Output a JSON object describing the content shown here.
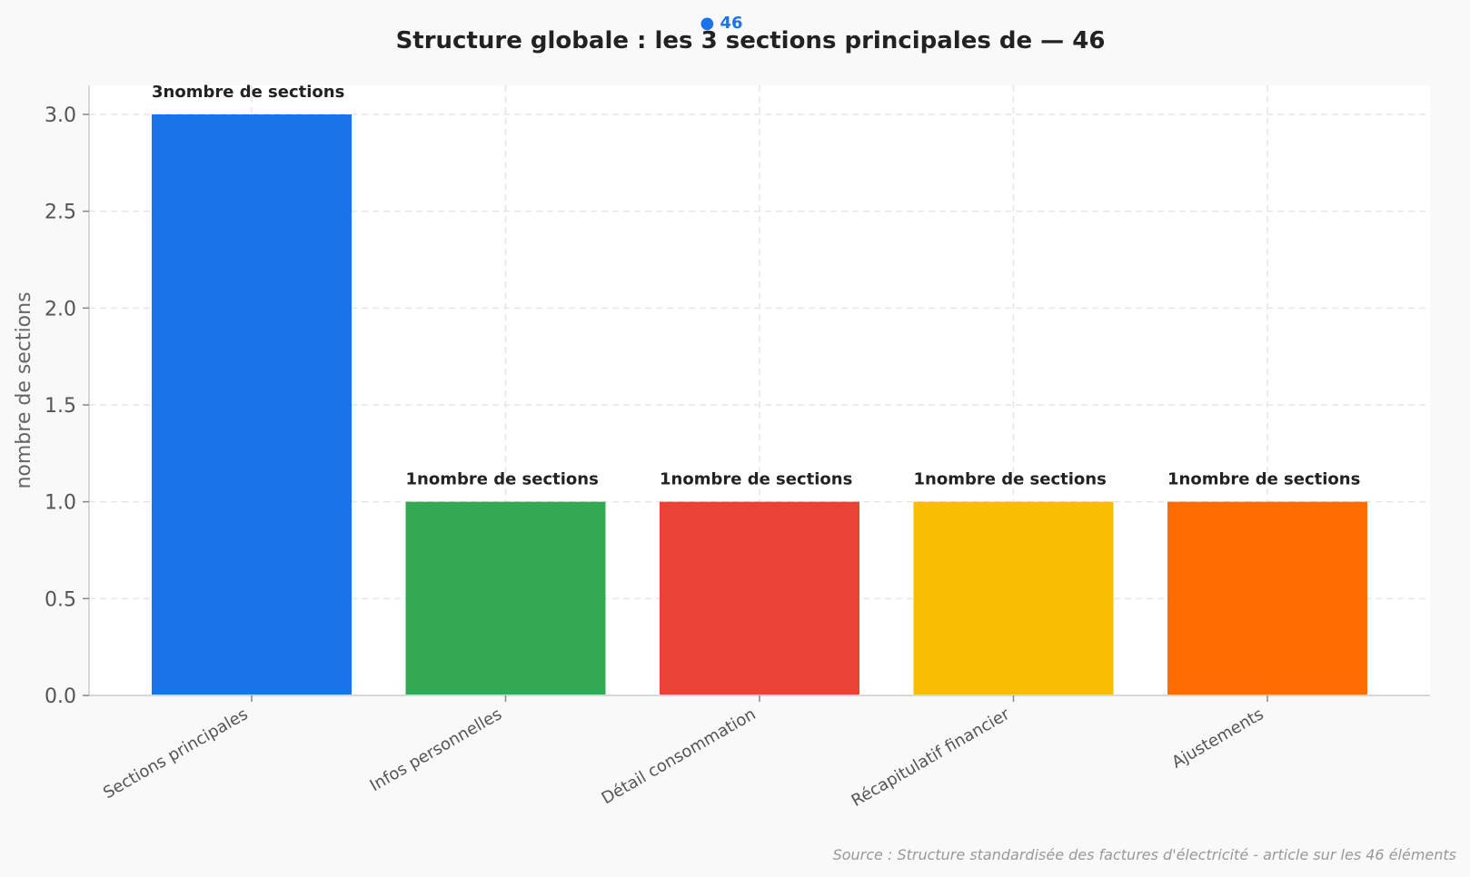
{
  "chart_data": {
    "type": "bar",
    "title": "Structure globale : les 3 sections principales de  — 46",
    "badge": "● 46",
    "ylabel": "nombre de sections",
    "xlabel": "",
    "categories": [
      "Sections principales",
      "Infos personnelles",
      "Détail consommation",
      "Récapitulatif financier",
      "Ajustements"
    ],
    "values": [
      3,
      1,
      1,
      1,
      1
    ],
    "data_labels": [
      "3nombre de sections",
      "1nombre de sections",
      "1nombre de sections",
      "1nombre de sections",
      "1nombre de sections"
    ],
    "colors": [
      "#1a73e8",
      "#34a853",
      "#ea4335",
      "#fbbc04",
      "#ff6d00"
    ],
    "ylim": [
      0,
      3.15
    ],
    "yticks": [
      0.0,
      0.5,
      1.0,
      1.5,
      2.0,
      2.5,
      3.0
    ],
    "ytick_labels": [
      "0.0",
      "0.5",
      "1.0",
      "1.5",
      "2.0",
      "2.5",
      "3.0"
    ],
    "grid": true,
    "source": "Source : Structure standardisée des factures d'électricité - article sur les 46 éléments"
  },
  "colors": {
    "accent": "#1a73e8"
  }
}
